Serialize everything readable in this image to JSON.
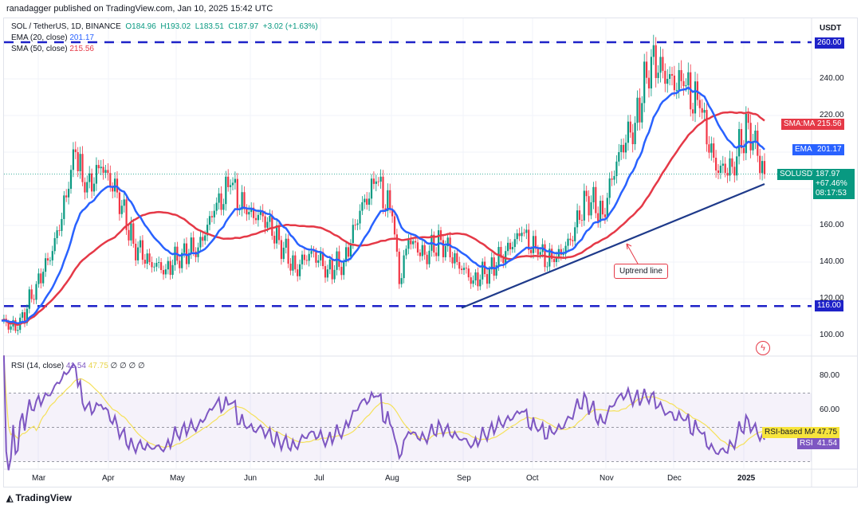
{
  "publisher": "ranadagger published on TradingView.com, Jan 10, 2025 15:42 UTC",
  "legend": {
    "symbol": "SOL / TetherUS, 1D, BINANCE",
    "open": "O184.96",
    "high": "H193.02",
    "low": "L183.51",
    "close": "C187.97",
    "change": "+3.02 (+1.63%)",
    "ema_label": "EMA (20, close)",
    "ema_value": "201.17",
    "sma_label": "SMA (50, close)",
    "sma_value": "215.56",
    "rsi_label": "RSI (14, close)",
    "rsi_value": "41.54",
    "rsi_ma_value": "47.75",
    "rsi_extra": "∅ ∅ ∅ ∅"
  },
  "price_axis": {
    "currency": "USDT",
    "ticks": [
      "240.00",
      "220.00",
      "160.00",
      "140.00",
      "120.00",
      "100.00"
    ],
    "tick_values": [
      240,
      220,
      160,
      140,
      120,
      100
    ],
    "resistance_label": "260.00",
    "support_label": "116.00"
  },
  "tags": {
    "sma_name": "SMA:MA",
    "sma_value": "215.56",
    "ema_name": "EMA",
    "ema_value": "201.17",
    "symbol_name": "SOLUSDT",
    "price": "187.97",
    "pct": "+67.46%",
    "countdown": "08:17:53",
    "rsi_ma_name": "RSI-based MA",
    "rsi_ma_value": "47.75",
    "rsi_name": "RSI",
    "rsi_value": "41.54"
  },
  "rsi_axis": {
    "ticks": [
      "80.00",
      "60.00"
    ]
  },
  "time_axis": [
    "Mar",
    "Apr",
    "May",
    "Jun",
    "Jul",
    "Aug",
    "Sep",
    "Oct",
    "Nov",
    "Dec",
    "2025"
  ],
  "annotation": "Uptrend line",
  "footer": "TradingView",
  "colors": {
    "up": "#089981",
    "down": "#f23645",
    "ema": "#2962ff",
    "sma": "#e53947",
    "level": "#1e22c8",
    "trend": "#1e3a8a",
    "rsi": "#7e57c2",
    "rsi_ma": "#f5e15a"
  },
  "chart_data": {
    "type": "candlestick",
    "title": "SOL / TetherUS, 1D, BINANCE",
    "ylabel": "USDT",
    "ylim": [
      92,
      268
    ],
    "levels": [
      260,
      116
    ],
    "trendline": {
      "from": [
        "2024-09-01",
        115
      ],
      "to": [
        "2025-01-10",
        182.6
      ]
    },
    "weekly_closes": [
      [
        "2024-02-15",
        108
      ],
      [
        "2024-02-22",
        103
      ],
      [
        "2024-03-01",
        128
      ],
      [
        "2024-03-08",
        146
      ],
      [
        "2024-03-15",
        180
      ],
      [
        "2024-03-18",
        200
      ],
      [
        "2024-03-22",
        178
      ],
      [
        "2024-03-29",
        192
      ],
      [
        "2024-04-05",
        178
      ],
      [
        "2024-04-12",
        150
      ],
      [
        "2024-04-19",
        140
      ],
      [
        "2024-04-26",
        136
      ],
      [
        "2024-05-03",
        145
      ],
      [
        "2024-05-10",
        148
      ],
      [
        "2024-05-17",
        168
      ],
      [
        "2024-05-24",
        182
      ],
      [
        "2024-05-31",
        166
      ],
      [
        "2024-06-07",
        165
      ],
      [
        "2024-06-14",
        152
      ],
      [
        "2024-06-21",
        136
      ],
      [
        "2024-06-28",
        146
      ],
      [
        "2024-07-05",
        136
      ],
      [
        "2024-07-12",
        140
      ],
      [
        "2024-07-19",
        168
      ],
      [
        "2024-07-26",
        184
      ],
      [
        "2024-08-02",
        165
      ],
      [
        "2024-08-05",
        128
      ],
      [
        "2024-08-09",
        152
      ],
      [
        "2024-08-16",
        144
      ],
      [
        "2024-08-23",
        152
      ],
      [
        "2024-08-30",
        140
      ],
      [
        "2024-09-06",
        130
      ],
      [
        "2024-09-13",
        136
      ],
      [
        "2024-09-20",
        146
      ],
      [
        "2024-09-27",
        156
      ],
      [
        "2024-10-04",
        144
      ],
      [
        "2024-10-11",
        140
      ],
      [
        "2024-10-18",
        152
      ],
      [
        "2024-10-25",
        176
      ],
      [
        "2024-11-01",
        166
      ],
      [
        "2024-11-08",
        200
      ],
      [
        "2024-11-15",
        216
      ],
      [
        "2024-11-22",
        252
      ],
      [
        "2024-11-29",
        240
      ],
      [
        "2024-12-06",
        236
      ],
      [
        "2024-12-13",
        224
      ],
      [
        "2024-12-20",
        190
      ],
      [
        "2024-12-27",
        192
      ],
      [
        "2025-01-03",
        216
      ],
      [
        "2025-01-07",
        198
      ],
      [
        "2025-01-10",
        188
      ]
    ],
    "indicators": [
      "EMA 20",
      "SMA 50",
      "RSI 14",
      "RSI-based MA 14"
    ]
  }
}
